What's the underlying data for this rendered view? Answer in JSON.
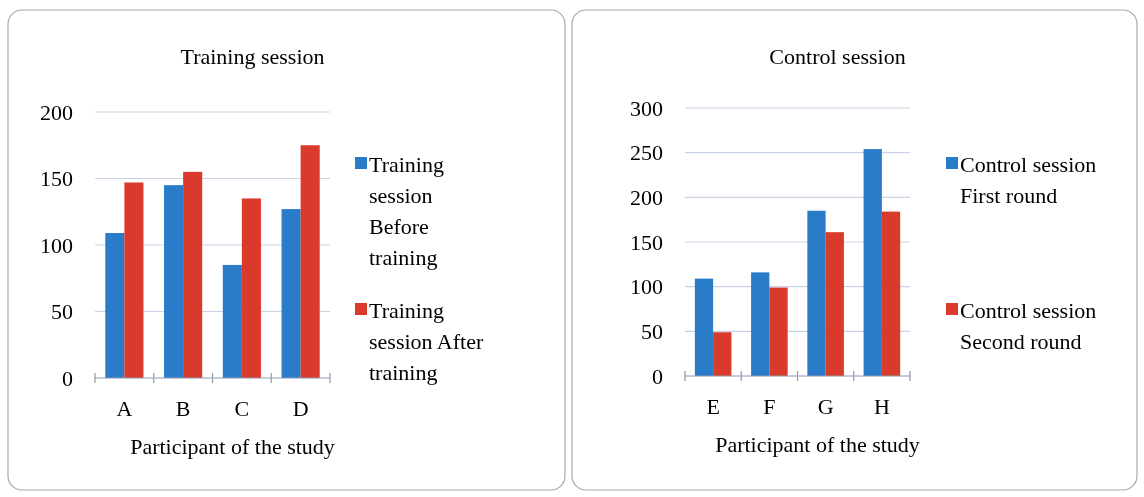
{
  "chart_data": [
    {
      "type": "bar",
      "title": "Training session",
      "xlabel": "Participant of the study",
      "categories": [
        "A",
        "B",
        "C",
        "D"
      ],
      "series": [
        {
          "name": "Training session Before training",
          "color": "#2a7bc8",
          "values": [
            109,
            145,
            85,
            127
          ]
        },
        {
          "name": "Training session After training",
          "color": "#d93a2b",
          "values": [
            147,
            155,
            135,
            175
          ]
        }
      ],
      "ylim": [
        0,
        200
      ],
      "yticks": [
        0,
        50,
        100,
        150,
        200
      ],
      "grid": "y",
      "legend": "right"
    },
    {
      "type": "bar",
      "title": "Control session",
      "xlabel": "Participant of the study",
      "categories": [
        "E",
        "F",
        "G",
        "H"
      ],
      "series": [
        {
          "name": "Control session First round",
          "color": "#2a7bc8",
          "values": [
            109,
            116,
            185,
            254
          ]
        },
        {
          "name": "Control session Second round",
          "color": "#d93a2b",
          "values": [
            49,
            99,
            161,
            184
          ]
        }
      ],
      "ylim": [
        0,
        300
      ],
      "yticks": [
        0,
        50,
        100,
        150,
        200,
        250,
        300
      ],
      "grid": "y",
      "legend": "right"
    }
  ]
}
